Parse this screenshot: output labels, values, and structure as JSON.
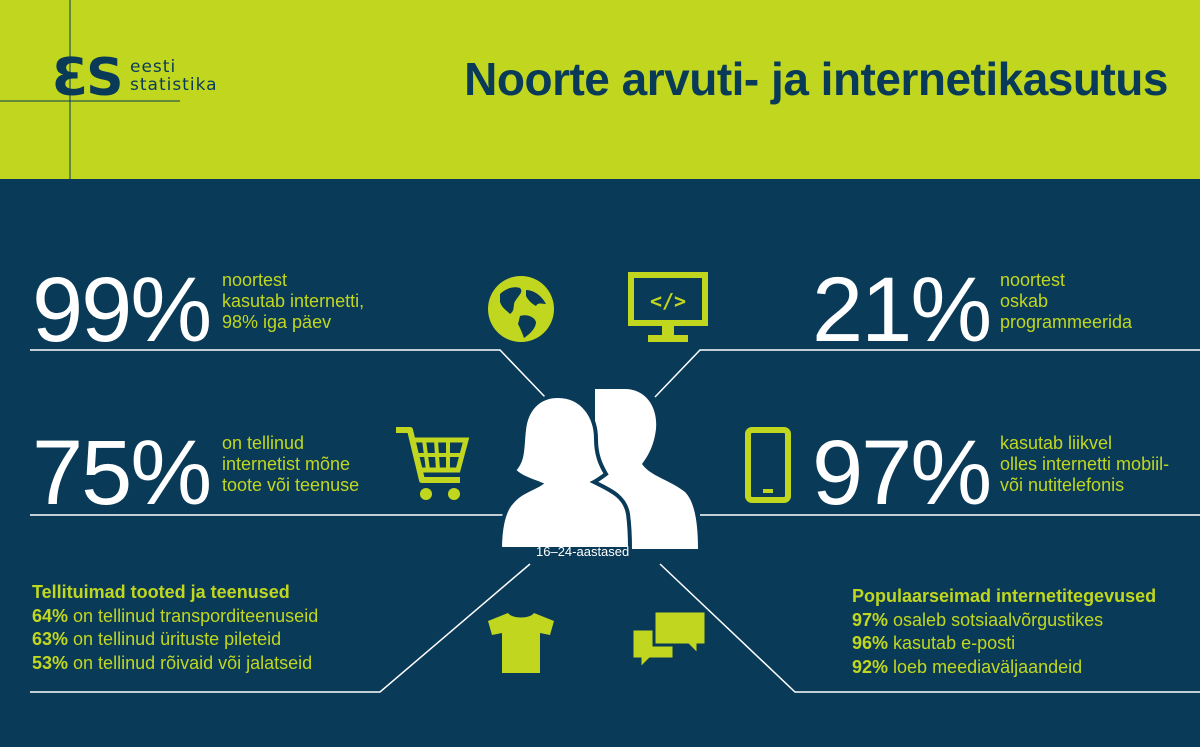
{
  "header": {
    "logo_mark": "ƐS",
    "logo_line1": "eesti",
    "logo_line2": "statistika",
    "title": "Noorte arvuti- ja internetikasutus"
  },
  "stats": [
    {
      "value": "99%",
      "text": "noortest\nkasutab internetti,\n98% iga päev",
      "icon": "globe-icon"
    },
    {
      "value": "21%",
      "text": "noortest\noskab\nprogrammeerida",
      "icon": "computer-code-icon"
    },
    {
      "value": "75%",
      "text": "on tellinud\ninternetist mõne\ntoote või teenuse",
      "icon": "shopping-cart-icon"
    },
    {
      "value": "97%",
      "text": "kasutab liikvel\nolles internetti mobiil-\nvõi nutitelefonis",
      "icon": "smartphone-icon"
    }
  ],
  "center": {
    "age_label": "16–24-aastased",
    "icon": "people-silhouette-icon"
  },
  "orders": {
    "heading": "Tellituimad tooted ja teenused",
    "icon": "tshirt-icon",
    "items": [
      {
        "pct": "64%",
        "text": " on tellinud transporditeenuseid"
      },
      {
        "pct": "63%",
        "text": " on tellinud ürituste pileteid"
      },
      {
        "pct": "53%",
        "text": " on tellinud rõivaid või jalatseid"
      }
    ]
  },
  "activities": {
    "heading": "Populaarseimad internetitegevused",
    "icon": "chat-bubbles-icon",
    "items": [
      {
        "pct": "97%",
        "text": " osaleb sotsiaalvõrgustikes"
      },
      {
        "pct": "96%",
        "text": " kasutab e-posti"
      },
      {
        "pct": "92%",
        "text": " loeb meediaväljaandeid"
      }
    ]
  },
  "colors": {
    "navy": "#093a58",
    "lime": "#c1d71f",
    "white": "#ffffff"
  }
}
